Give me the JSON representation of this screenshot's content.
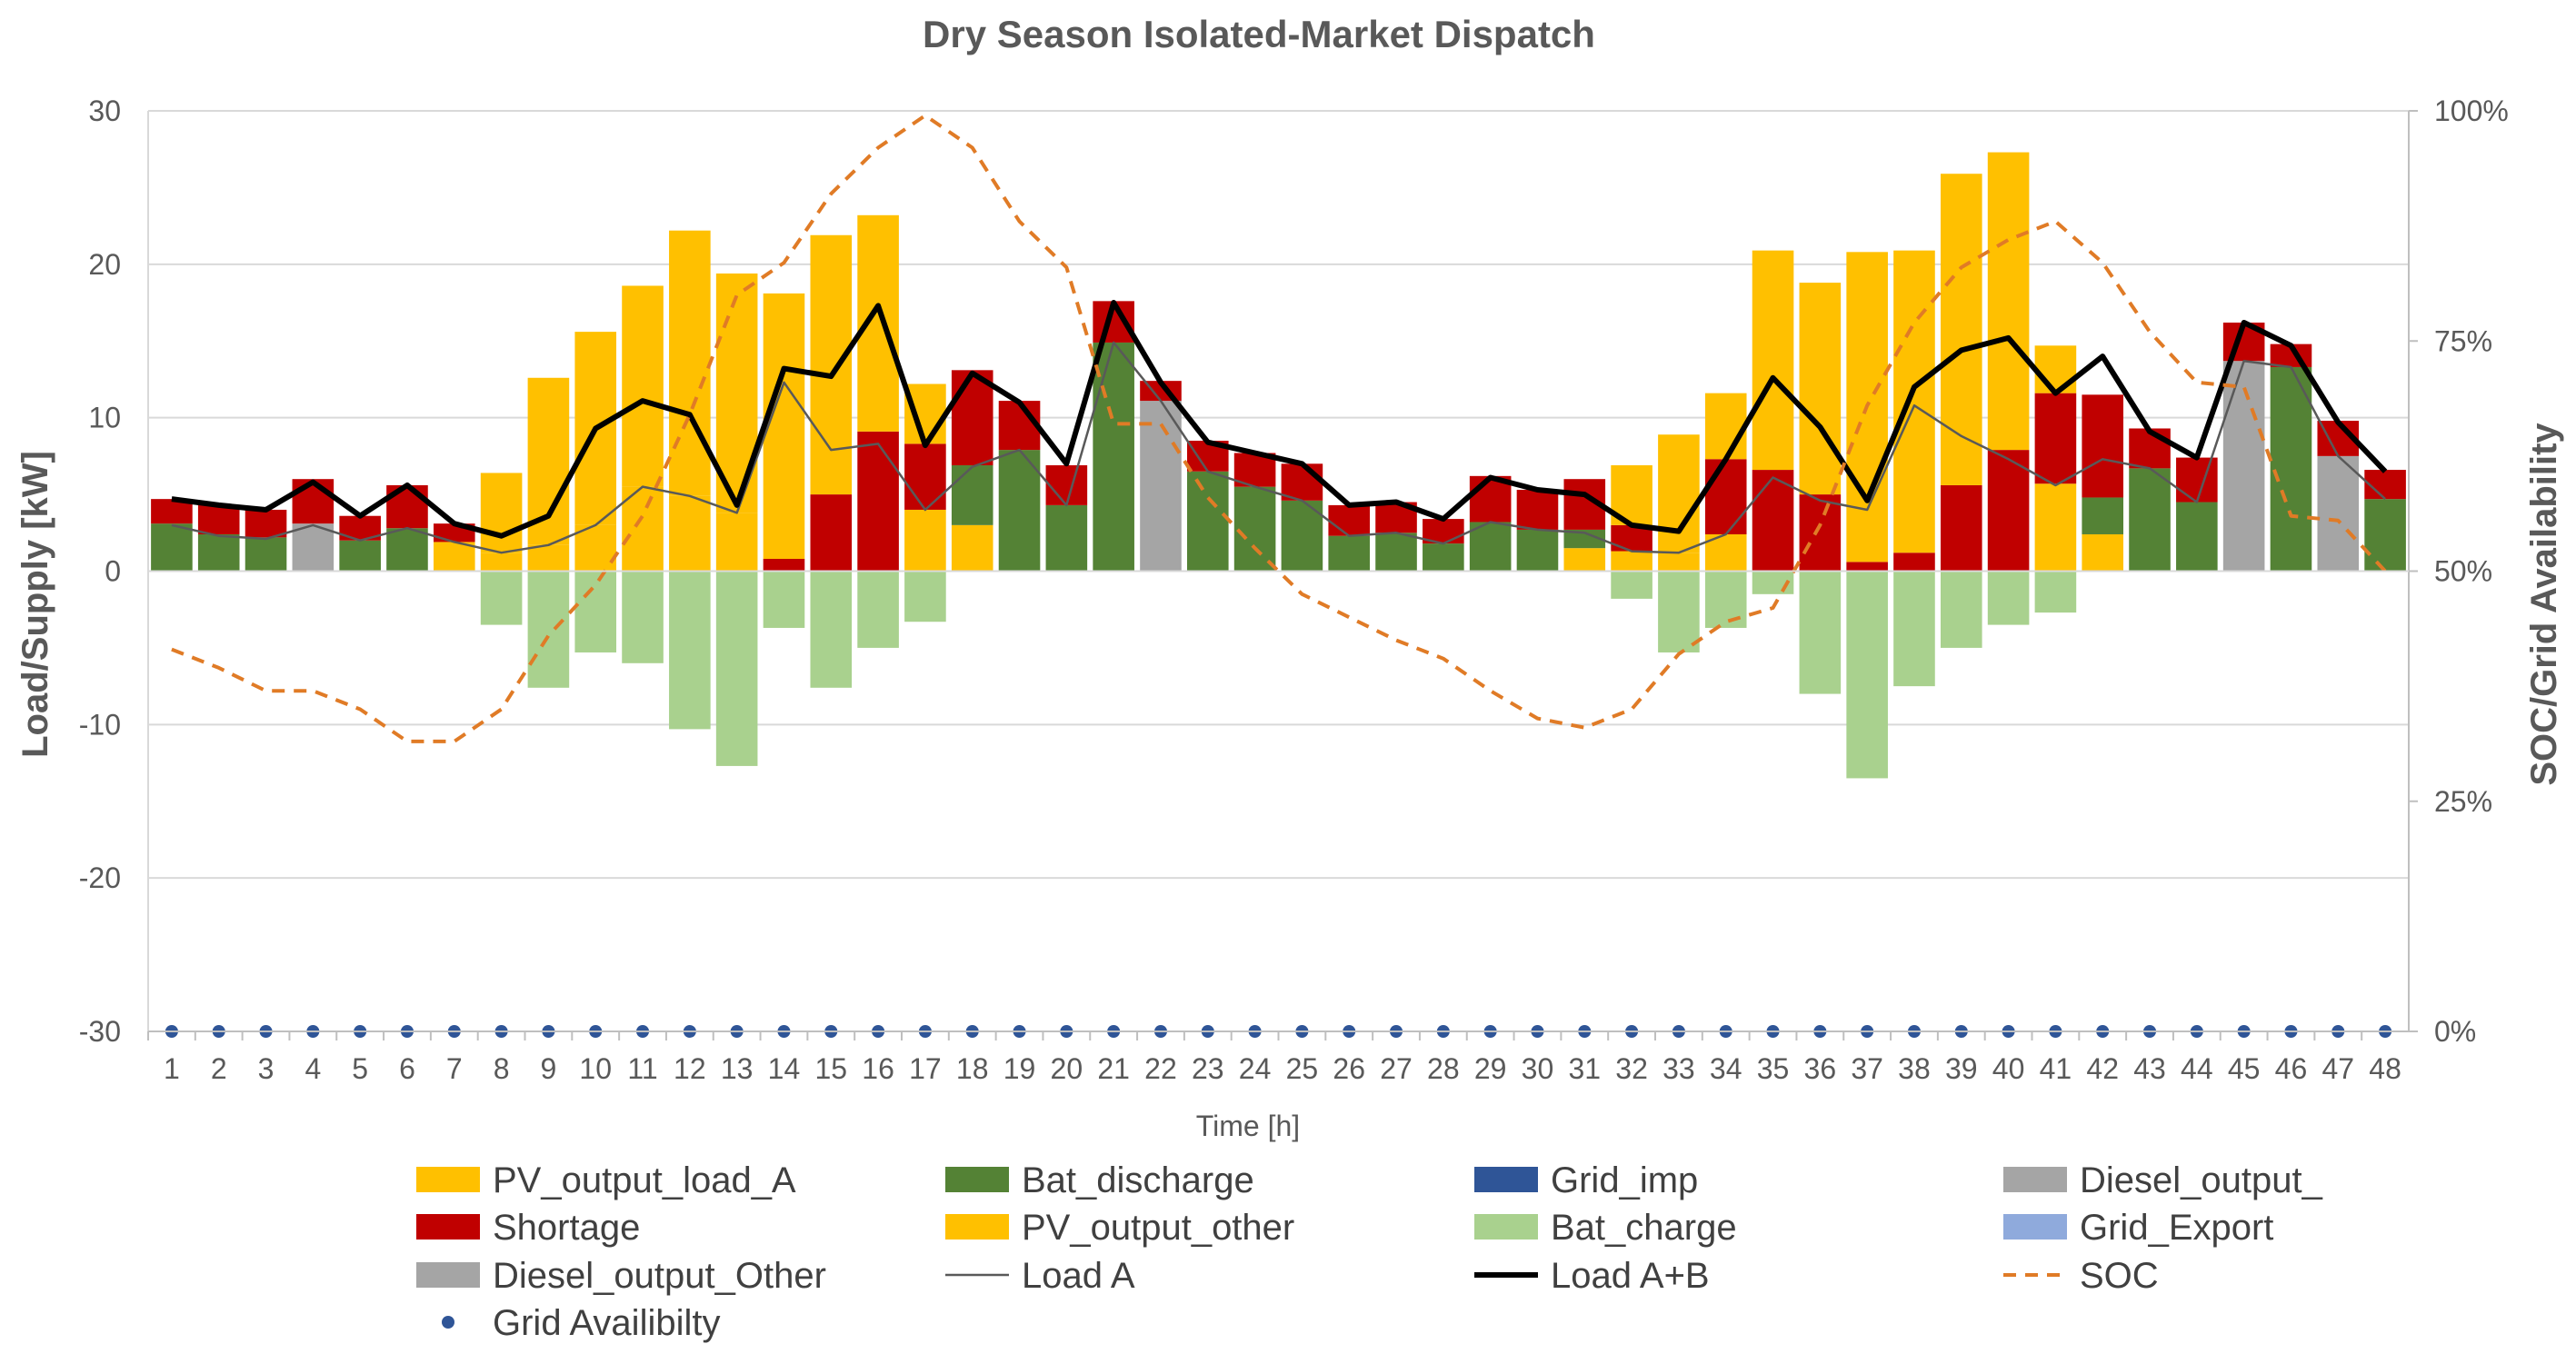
{
  "chart_data": {
    "type": "bar",
    "title": "Dry Season Isolated-Market Dispatch",
    "xlabel": "Time [h]",
    "ylabel": "Load/Supply [kW]",
    "y2label": "SOC/Grid Availability",
    "ylim": [
      -30,
      30
    ],
    "yticks": [
      "30",
      "20",
      "10",
      "0",
      "-10",
      "-20",
      "-30"
    ],
    "y2lim": [
      0,
      100
    ],
    "y2ticks": [
      "100%",
      "75%",
      "50%",
      "25%",
      "0%"
    ],
    "categories": [
      "1",
      "2",
      "3",
      "4",
      "5",
      "6",
      "7",
      "8",
      "9",
      "10",
      "11",
      "12",
      "13",
      "14",
      "15",
      "16",
      "17",
      "18",
      "19",
      "20",
      "21",
      "22",
      "23",
      "24",
      "25",
      "26",
      "27",
      "28",
      "29",
      "30",
      "31",
      "32",
      "33",
      "34",
      "35",
      "36",
      "37",
      "38",
      "39",
      "40",
      "41",
      "42",
      "43",
      "44",
      "45",
      "46",
      "47",
      "48"
    ],
    "colors": {
      "pv_load_a": "#FFC000",
      "shortage": "#C00000",
      "diesel_a": "#A5A5A5",
      "bat_discharge": "#548235",
      "pv_other": "#FFC000",
      "diesel_other": "#A5A5A5",
      "grid_imp": "#2F5597",
      "bat_charge": "#A9D18E",
      "grid_export": "#8FAADC",
      "load_a": "#595959",
      "load_ab": "#000000",
      "soc": "#E07B26",
      "grid_avail": "#2F5597"
    },
    "series": [
      {
        "name": "PV_output_load_A",
        "key": "pv_load_a",
        "values": [
          0,
          0,
          0,
          0,
          0,
          0,
          1.9,
          1.2,
          1.7,
          3,
          5.5,
          4.9,
          3.8,
          0,
          0,
          0,
          4,
          3,
          0,
          0,
          0,
          0,
          0,
          0,
          0,
          0,
          0,
          0,
          0,
          0,
          1.5,
          1.3,
          1.2,
          2.4,
          0,
          0,
          0,
          0,
          0,
          0,
          5.7,
          2.4,
          0,
          0,
          0,
          0,
          0,
          0
        ]
      },
      {
        "name": "Bat_discharge",
        "key": "bat_discharge",
        "values": [
          3.1,
          2.4,
          2.2,
          0,
          2,
          2.8,
          0,
          0,
          0,
          0,
          0,
          0,
          0,
          0,
          0,
          0,
          0,
          3.9,
          7.9,
          4.3,
          14.9,
          0,
          6.5,
          5.5,
          4.6,
          2.3,
          2.5,
          1.8,
          3.2,
          2.7,
          1.2,
          0,
          0,
          0,
          0,
          0,
          0,
          0,
          0,
          0,
          0,
          2.4,
          6.7,
          4.5,
          0,
          13.3,
          0,
          4.7
        ]
      },
      {
        "name": "Grid_imp",
        "key": "grid_imp",
        "values": [
          0,
          0,
          0,
          0,
          0,
          0,
          0,
          0,
          0,
          0,
          0,
          0,
          0,
          0,
          0,
          0,
          0,
          0,
          0,
          0,
          0,
          0,
          0,
          0,
          0,
          0,
          0,
          0,
          0,
          0,
          0,
          0,
          0,
          0,
          0,
          0,
          0,
          0,
          0,
          0,
          0,
          0,
          0,
          0,
          0,
          0,
          0,
          0
        ]
      },
      {
        "name": "Diesel_output_",
        "key": "diesel_a",
        "values": [
          0,
          0,
          0,
          3.1,
          0,
          0,
          0,
          0,
          0,
          0,
          0,
          0,
          0,
          0,
          0,
          0,
          0,
          0,
          0,
          0,
          0,
          11.1,
          0,
          0,
          0,
          0,
          0,
          0,
          0,
          0,
          0,
          0,
          0,
          0,
          0,
          0,
          0,
          0,
          0,
          0,
          0,
          0,
          0,
          0,
          13.7,
          0,
          7.5,
          0
        ]
      },
      {
        "name": "Shortage",
        "key": "shortage",
        "values": [
          1.6,
          1.9,
          1.8,
          2.9,
          1.6,
          2.8,
          1.2,
          0,
          0,
          0,
          0,
          0,
          0,
          0.8,
          5,
          9.1,
          4.3,
          6.2,
          3.2,
          2.6,
          2.7,
          1.3,
          2,
          2.2,
          2.4,
          2,
          2,
          1.6,
          3,
          2.6,
          3.3,
          1.7,
          0,
          4.9,
          6.6,
          5,
          0.6,
          1.2,
          5.6,
          7.9,
          5.9,
          6.7,
          2.6,
          2.9,
          2.5,
          1.5,
          2.3,
          1.9
        ]
      },
      {
        "name": "PV_output_other",
        "key": "pv_other",
        "values": [
          0,
          0,
          0,
          0,
          0,
          0,
          0,
          5.2,
          10.9,
          12.6,
          13.1,
          17.3,
          15.6,
          17.3,
          16.9,
          14.1,
          3.9,
          0,
          0,
          0,
          0,
          0,
          0,
          0,
          0,
          0,
          0,
          0,
          0,
          0,
          0,
          3.9,
          7.7,
          4.3,
          14.3,
          13.8,
          20.2,
          19.7,
          20.3,
          19.4,
          3.1,
          0,
          0,
          0,
          0,
          0,
          0,
          0
        ]
      },
      {
        "name": "Bat_charge",
        "key": "bat_charge",
        "values": [
          0,
          0,
          0,
          0,
          0,
          0,
          0,
          -3.5,
          -7.6,
          -5.3,
          -6,
          -10.3,
          -12.7,
          -3.7,
          -7.6,
          -5,
          -3.3,
          0,
          0,
          0,
          0,
          0,
          0,
          0,
          0,
          0,
          0,
          0,
          0,
          0,
          0,
          -1.8,
          -5.3,
          -3.7,
          -1.5,
          -8,
          -13.5,
          -7.5,
          -5,
          -3.5,
          -2.7,
          0,
          0,
          0,
          0,
          0,
          0,
          0
        ]
      },
      {
        "name": "Grid_Export",
        "key": "grid_export",
        "values": [
          0,
          0,
          0,
          0,
          0,
          0,
          0,
          0,
          0,
          0,
          0,
          0,
          0,
          0,
          0,
          0,
          0,
          0,
          0,
          0,
          0,
          0,
          0,
          0,
          0,
          0,
          0,
          0,
          0,
          0,
          0,
          0,
          0,
          0,
          0,
          0,
          0,
          0,
          0,
          0,
          0,
          0,
          0,
          0,
          0,
          0,
          0,
          0
        ]
      },
      {
        "name": "Diesel_output_Other",
        "key": "diesel_other",
        "values": [
          0,
          0,
          0,
          0,
          0,
          0,
          0,
          0,
          0,
          0,
          0,
          0,
          0,
          0,
          0,
          0,
          0,
          0,
          0,
          0,
          0,
          0,
          0,
          0,
          0,
          0,
          0,
          0,
          0,
          0,
          0,
          0,
          0,
          0,
          0,
          0,
          0,
          0,
          0,
          0,
          0,
          0,
          0,
          0,
          0,
          0,
          0,
          0
        ]
      }
    ],
    "lines": [
      {
        "name": "Load A",
        "key": "load_a",
        "axis": "left",
        "values": [
          3,
          2.3,
          2.1,
          3,
          2,
          2.8,
          1.9,
          1.2,
          1.7,
          3,
          5.5,
          4.9,
          3.8,
          12.3,
          7.9,
          8.3,
          4,
          6.8,
          7.9,
          4.3,
          14.9,
          11.1,
          6.5,
          5.5,
          4.6,
          2.3,
          2.5,
          1.8,
          3.2,
          2.7,
          2.5,
          1.3,
          1.2,
          2.4,
          6.1,
          4.6,
          4,
          10.8,
          8.8,
          7.3,
          5.6,
          7.3,
          6.7,
          4.5,
          13.7,
          13.3,
          7.5,
          4.7
        ]
      },
      {
        "name": "Load A+B",
        "key": "load_ab",
        "axis": "left",
        "values": [
          4.7,
          4.3,
          4,
          5.8,
          3.6,
          5.6,
          3.1,
          2.3,
          3.6,
          9.3,
          11.1,
          10.2,
          4.3,
          13.2,
          12.7,
          17.3,
          8.2,
          12.9,
          11,
          7,
          17.5,
          12.3,
          8.4,
          7.7,
          7,
          4.3,
          4.5,
          3.4,
          6.1,
          5.3,
          5,
          3,
          2.6,
          7.3,
          12.6,
          9.4,
          4.6,
          12,
          14.4,
          15.2,
          11.6,
          14,
          9.1,
          7.4,
          16.2,
          14.7,
          9.7,
          6.5
        ]
      },
      {
        "name": "SOC",
        "key": "soc",
        "axis": "right",
        "dash": true,
        "values": [
          41.5,
          39.5,
          37,
          37,
          35,
          31.5,
          31.5,
          35,
          43,
          48.5,
          56,
          67,
          80,
          83.5,
          91,
          96,
          99.5,
          96,
          88,
          83,
          66,
          66,
          58,
          52.5,
          47.5,
          45,
          42.5,
          40.5,
          37,
          34,
          33,
          35,
          41,
          44.5,
          46,
          55,
          68,
          77,
          83,
          86,
          88,
          83.5,
          76,
          70.5,
          70,
          56,
          55.5,
          50
        ]
      },
      {
        "name": "Grid Availibilty",
        "key": "grid_avail",
        "axis": "right",
        "markers": true,
        "values": [
          0,
          0,
          0,
          0,
          0,
          0,
          0,
          0,
          0,
          0,
          0,
          0,
          0,
          0,
          0,
          0,
          0,
          0,
          0,
          0,
          0,
          0,
          0,
          0,
          0,
          0,
          0,
          0,
          0,
          0,
          0,
          0,
          0,
          0,
          0,
          0,
          0,
          0,
          0,
          0,
          0,
          0,
          0,
          0,
          0,
          0,
          0,
          0
        ]
      }
    ],
    "legend": [
      {
        "label": "PV_output_load_A",
        "key": "pv_load_a",
        "kind": "box"
      },
      {
        "label": "Bat_discharge",
        "key": "bat_discharge",
        "kind": "box"
      },
      {
        "label": "Grid_imp",
        "key": "grid_imp",
        "kind": "box"
      },
      {
        "label": "Diesel_output_",
        "key": "diesel_a",
        "kind": "box"
      },
      {
        "label": "Shortage",
        "key": "shortage",
        "kind": "box"
      },
      {
        "label": "PV_output_other",
        "key": "pv_other",
        "kind": "box"
      },
      {
        "label": "Bat_charge",
        "key": "bat_charge",
        "kind": "box"
      },
      {
        "label": "Grid_Export",
        "key": "grid_export",
        "kind": "box"
      },
      {
        "label": "Diesel_output_Other",
        "key": "diesel_other",
        "kind": "box"
      },
      {
        "label": "Load A",
        "key": "load_a",
        "kind": "thin"
      },
      {
        "label": "Load A+B",
        "key": "load_ab",
        "kind": "thick"
      },
      {
        "label": "SOC",
        "key": "soc",
        "kind": "dash"
      },
      {
        "label": "Grid Availibilty",
        "key": "grid_avail",
        "kind": "dot"
      }
    ],
    "legend_position": "bottom"
  }
}
